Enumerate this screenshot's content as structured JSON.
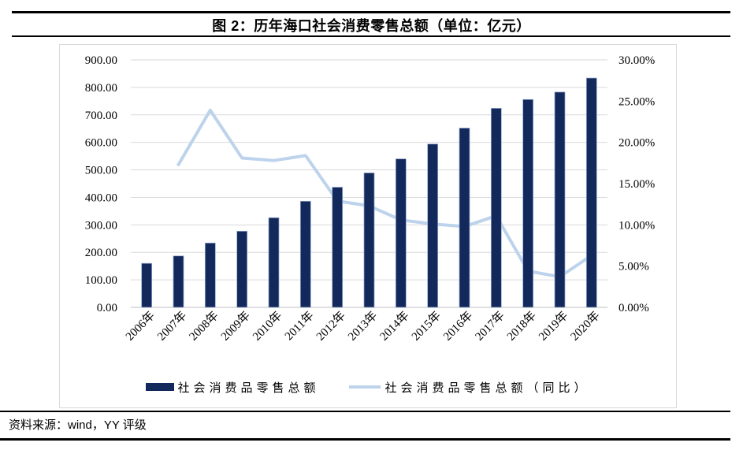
{
  "header": {
    "title": "图 2：历年海口社会消费零售总额（单位：亿元）"
  },
  "footer": {
    "source": "资料来源：wind，YY 评级"
  },
  "colors": {
    "bar_fill": "#14295B",
    "bar_edge": "#93A9CD",
    "line": "#BDD3EB",
    "gridline": "#D9D9D9",
    "axis_line": "#BFBFBF",
    "frame_border": "#D9D9D9",
    "text": "#000000",
    "rule": "#000000"
  },
  "chart_data": {
    "type": "bar+line combo",
    "title": "图 2：历年海口社会消费零售总额（单位：亿元）",
    "categories": [
      "2006年",
      "2007年",
      "2008年",
      "2009年",
      "2010年",
      "2011年",
      "2012年",
      "2013年",
      "2014年",
      "2015年",
      "2016年",
      "2017年",
      "2018年",
      "2019年",
      "2020年"
    ],
    "series": [
      {
        "name": "社会消费品零售总额",
        "type": "bar",
        "axis": "left",
        "unit": "亿元",
        "color": "#14295B",
        "values": [
          160,
          187,
          234,
          277,
          326,
          386,
          437,
          489,
          540,
          594,
          652,
          724,
          756,
          783,
          834
        ]
      },
      {
        "name": "社会消费品零售总额（同比）",
        "type": "line",
        "axis": "right",
        "unit": "%",
        "color": "#BDD3EB",
        "values": [
          null,
          17.3,
          23.9,
          18.1,
          17.8,
          18.4,
          12.9,
          12.3,
          10.6,
          10.1,
          9.8,
          11.1,
          4.4,
          3.7,
          6.3
        ]
      }
    ],
    "left_axis": {
      "min": 0,
      "max": 900,
      "step": 100,
      "format": "0.00"
    },
    "right_axis": {
      "min": 0,
      "max": 30,
      "step": 5,
      "format": "0.00%"
    },
    "grid": true,
    "legend_position": "bottom"
  }
}
